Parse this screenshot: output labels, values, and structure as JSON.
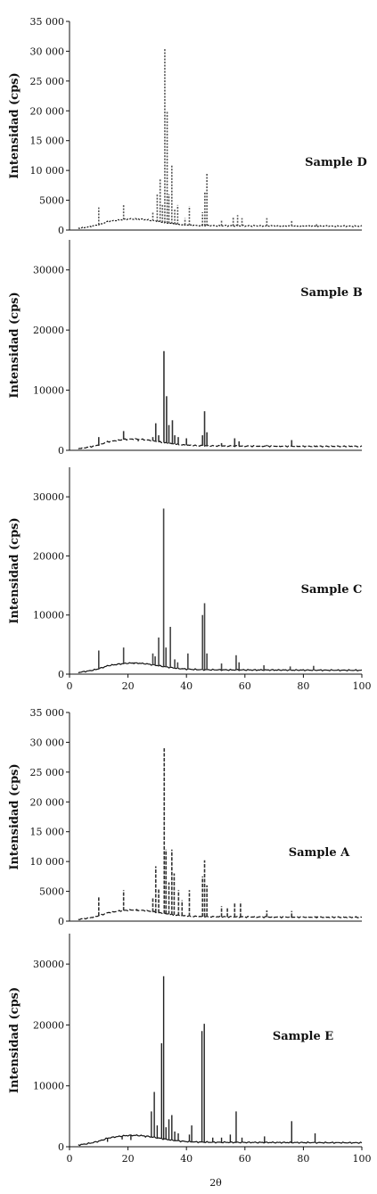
{
  "chart_data": [
    {
      "type": "line",
      "ylabel": "Intensidad (cps)",
      "xlabel": "",
      "series": [
        {
          "name": "Sample D",
          "peaks": [
            [
              10,
              3800
            ],
            [
              18.5,
              4200
            ],
            [
              23,
              1700
            ],
            [
              28.5,
              3000
            ],
            [
              30,
              6000
            ],
            [
              31,
              8600
            ],
            [
              31.8,
              4200
            ],
            [
              32.6,
              30500
            ],
            [
              33.4,
              20000
            ],
            [
              34,
              6000
            ],
            [
              35,
              11000
            ],
            [
              36,
              3500
            ],
            [
              37,
              4200
            ],
            [
              39.5,
              2000
            ],
            [
              41,
              4000
            ],
            [
              45.5,
              3000
            ],
            [
              46.3,
              6500
            ],
            [
              47,
              9600
            ],
            [
              52,
              1700
            ],
            [
              56,
              2200
            ],
            [
              57.5,
              2500
            ],
            [
              59,
              2000
            ],
            [
              67.5,
              2000
            ],
            [
              76,
              1600
            ],
            [
              84.5,
              1200
            ]
          ]
        }
      ],
      "xlim": [
        0,
        100
      ],
      "ylim": [
        0,
        35000
      ],
      "yticks": [
        "0",
        "5000",
        "10 000",
        "15 000",
        "20 000",
        "25 000",
        "30 000",
        "35 000"
      ],
      "xticks": []
    },
    {
      "type": "line",
      "ylabel": "Intensidad (cps)",
      "xlabel": "",
      "series": [
        {
          "name": "Sample B",
          "peaks": [
            [
              10,
              2200
            ],
            [
              18.5,
              3200
            ],
            [
              23.5,
              1500
            ],
            [
              28.5,
              2200
            ],
            [
              29.5,
              4500
            ],
            [
              30.5,
              2500
            ],
            [
              32.3,
              16500
            ],
            [
              33.2,
              9000
            ],
            [
              34,
              4200
            ],
            [
              35.2,
              5000
            ],
            [
              36,
              2500
            ],
            [
              37.2,
              2200
            ],
            [
              40,
              2000
            ],
            [
              45.5,
              2500
            ],
            [
              46.2,
              6500
            ],
            [
              47,
              3000
            ],
            [
              52,
              1200
            ],
            [
              56.5,
              2000
            ],
            [
              58,
              1500
            ],
            [
              67.5,
              900
            ],
            [
              76,
              1700
            ],
            [
              84.5,
              800
            ]
          ]
        }
      ],
      "xlim": [
        0,
        100
      ],
      "ylim": [
        0,
        35000
      ],
      "yticks": [
        "0",
        "10000",
        "20000",
        "30000"
      ],
      "xticks": []
    },
    {
      "type": "line",
      "ylabel": "Intensidad (cps)",
      "xlabel": "",
      "series": [
        {
          "name": "Sample C",
          "peaks": [
            [
              10,
              4000
            ],
            [
              14,
              1500
            ],
            [
              18.5,
              4500
            ],
            [
              22,
              2000
            ],
            [
              28.5,
              3500
            ],
            [
              29.3,
              3000
            ],
            [
              30.5,
              6200
            ],
            [
              32.2,
              28000
            ],
            [
              33,
              4500
            ],
            [
              34.5,
              8000
            ],
            [
              36,
              2500
            ],
            [
              37,
              2000
            ],
            [
              40.5,
              3500
            ],
            [
              45.5,
              10000
            ],
            [
              46.2,
              12000
            ],
            [
              47,
              3500
            ],
            [
              52,
              1800
            ],
            [
              57,
              3200
            ],
            [
              58,
              2000
            ],
            [
              66.5,
              1500
            ],
            [
              75.5,
              1300
            ],
            [
              83.5,
              1400
            ]
          ]
        }
      ],
      "xlim": [
        0,
        100
      ],
      "ylim": [
        0,
        35000
      ],
      "yticks": [
        "0",
        "10000",
        "20000",
        "30000"
      ],
      "xticks": [
        "0",
        "20",
        "40",
        "60",
        "80",
        "100"
      ]
    },
    {
      "type": "line",
      "ylabel": "Intensidad (cps)",
      "xlabel": "",
      "series": [
        {
          "name": "Sample A",
          "peaks": [
            [
              10,
              4200
            ],
            [
              18.5,
              5200
            ],
            [
              23,
              1700
            ],
            [
              28.5,
              4000
            ],
            [
              29.5,
              9200
            ],
            [
              30.5,
              5500
            ],
            [
              32.4,
              29000
            ],
            [
              33,
              12000
            ],
            [
              34,
              6500
            ],
            [
              35,
              12000
            ],
            [
              35.8,
              8000
            ],
            [
              37.3,
              5200
            ],
            [
              38.5,
              3500
            ],
            [
              41,
              5200
            ],
            [
              45.5,
              7500
            ],
            [
              46.2,
              10200
            ],
            [
              47,
              6000
            ],
            [
              52,
              2500
            ],
            [
              54,
              2200
            ],
            [
              56.5,
              3000
            ],
            [
              58.5,
              3200
            ],
            [
              67.5,
              1800
            ],
            [
              76,
              1700
            ],
            [
              84.5,
              800
            ]
          ]
        }
      ],
      "xlim": [
        0,
        100
      ],
      "ylim": [
        0,
        35000
      ],
      "yticks": [
        "0",
        "5000",
        "10 000",
        "15 000",
        "20 000",
        "25 000",
        "30 000",
        "35 000"
      ],
      "xticks": []
    },
    {
      "type": "line",
      "ylabel": "Intensidad (cps)",
      "xlabel": "2θ",
      "series": [
        {
          "name": "Sample E",
          "peaks": [
            [
              10.5,
              1000
            ],
            [
              13,
              800
            ],
            [
              18,
              1200
            ],
            [
              21,
              1100
            ],
            [
              24.5,
              2000
            ],
            [
              26,
              1500
            ],
            [
              28,
              5800
            ],
            [
              29,
              9000
            ],
            [
              30,
              3500
            ],
            [
              31.5,
              17000
            ],
            [
              32.2,
              28000
            ],
            [
              33,
              3200
            ],
            [
              34,
              4500
            ],
            [
              35,
              5200
            ],
            [
              36,
              2500
            ],
            [
              37.2,
              2200
            ],
            [
              41,
              2000
            ],
            [
              41.8,
              3500
            ],
            [
              45.3,
              19000
            ],
            [
              46.1,
              20200
            ],
            [
              49,
              1500
            ],
            [
              52,
              1500
            ],
            [
              55,
              2000
            ],
            [
              57,
              5800
            ],
            [
              59,
              1500
            ],
            [
              66.7,
              1700
            ],
            [
              76,
              4200
            ],
            [
              84,
              2200
            ]
          ]
        }
      ],
      "xlim": [
        0,
        100
      ],
      "ylim": [
        0,
        35000
      ],
      "yticks": [
        "0",
        "10000",
        "20000",
        "30000"
      ],
      "xticks": [
        "0",
        "20",
        "40",
        "60",
        "80",
        "100"
      ]
    }
  ]
}
